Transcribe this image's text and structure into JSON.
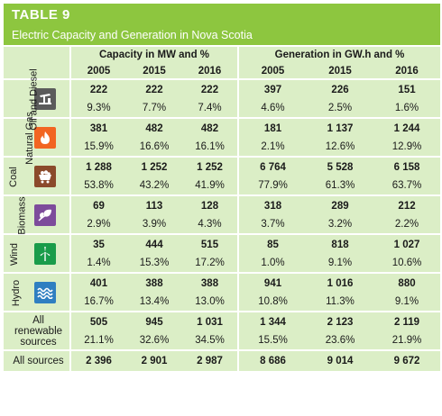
{
  "header": {
    "table_label": "TABLE 9",
    "subtitle": "Electric Capacity and Generation in Nova Scotia"
  },
  "groups": {
    "capacity": "Capacity in MW and %",
    "generation": "Generation in GW.h and %"
  },
  "years": [
    "2005",
    "2015",
    "2016",
    "2005",
    "2015",
    "2016"
  ],
  "rows": [
    {
      "label": "Oil and Diesel",
      "icon": "oil-pump-icon",
      "icon_color": "#5b5b5b",
      "values": [
        "222",
        "222",
        "222",
        "397",
        "226",
        "151"
      ],
      "percents": [
        "9.3%",
        "7.7%",
        "7.4%",
        "4.6%",
        "2.5%",
        "1.6%"
      ]
    },
    {
      "label": "Natural Gas",
      "icon": "flame-icon",
      "icon_color": "#f26522",
      "values": [
        "381",
        "482",
        "482",
        "181",
        "1 137",
        "1 244"
      ],
      "percents": [
        "15.9%",
        "16.6%",
        "16.1%",
        "2.1%",
        "12.6%",
        "12.9%"
      ]
    },
    {
      "label": "Coal",
      "icon": "coal-cart-icon",
      "icon_color": "#8b4a2b",
      "values": [
        "1 288",
        "1 252",
        "1 252",
        "6 764",
        "5 528",
        "6 158"
      ],
      "percents": [
        "53.8%",
        "43.2%",
        "41.9%",
        "77.9%",
        "61.3%",
        "63.7%"
      ]
    },
    {
      "label": "Biomass",
      "icon": "leaf-icon",
      "icon_color": "#7d4b9b",
      "values": [
        "69",
        "113",
        "128",
        "318",
        "289",
        "212"
      ],
      "percents": [
        "2.9%",
        "3.9%",
        "4.3%",
        "3.7%",
        "3.2%",
        "2.2%"
      ]
    },
    {
      "label": "Wind",
      "icon": "wind-turbine-icon",
      "icon_color": "#1a9c4a",
      "values": [
        "35",
        "444",
        "515",
        "85",
        "818",
        "1 027"
      ],
      "percents": [
        "1.4%",
        "15.3%",
        "17.2%",
        "1.0%",
        "9.1%",
        "10.6%"
      ]
    },
    {
      "label": "Hydro",
      "icon": "water-waves-icon",
      "icon_color": "#2f7fc1",
      "values": [
        "401",
        "388",
        "388",
        "941",
        "1 016",
        "880"
      ],
      "percents": [
        "16.7%",
        "13.4%",
        "13.0%",
        "10.8%",
        "11.3%",
        "9.1%"
      ]
    }
  ],
  "renewable": {
    "label_line1": "All renewable",
    "label_line2": "sources",
    "values": [
      "505",
      "945",
      "1 031",
      "1 344",
      "2 123",
      "2 119"
    ],
    "percents": [
      "21.1%",
      "32.6%",
      "34.5%",
      "15.5%",
      "23.6%",
      "21.9%"
    ]
  },
  "all_sources": {
    "label": "All sources",
    "values": [
      "2 396",
      "2 901",
      "2 987",
      "8 686",
      "9 014",
      "9 672"
    ]
  }
}
